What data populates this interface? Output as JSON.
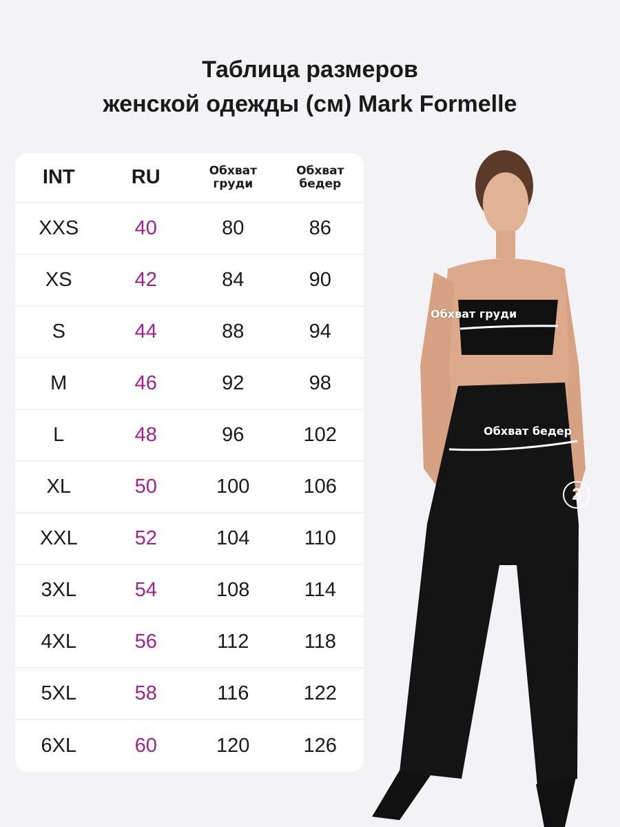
{
  "title": {
    "line1": "Таблица размеров",
    "line2": "женской одежды (см) Mark Formelle"
  },
  "table": {
    "headers": [
      "INT",
      "RU",
      "Обхват груди",
      "Обхват бедер"
    ],
    "header_lines": [
      [
        "INT"
      ],
      [
        "RU"
      ],
      [
        "Обхват",
        "груди"
      ],
      [
        "Обхват",
        "бедер"
      ]
    ],
    "rows": [
      [
        "XXS",
        "40",
        "80",
        "86"
      ],
      [
        "XS",
        "42",
        "84",
        "90"
      ],
      [
        "S",
        "44",
        "88",
        "94"
      ],
      [
        "M",
        "46",
        "92",
        "98"
      ],
      [
        "L",
        "48",
        "96",
        "102"
      ],
      [
        "XL",
        "50",
        "100",
        "106"
      ],
      [
        "XXL",
        "52",
        "104",
        "110"
      ],
      [
        "3XL",
        "54",
        "108",
        "114"
      ],
      [
        "4XL",
        "56",
        "112",
        "118"
      ],
      [
        "5XL",
        "58",
        "116",
        "122"
      ],
      [
        "6XL",
        "60",
        "120",
        "126"
      ]
    ],
    "accent_color": "#a3208f"
  },
  "photo": {
    "bust_label": "Обхват груди",
    "hip_label": "Обхват бедер",
    "badge": "2"
  }
}
